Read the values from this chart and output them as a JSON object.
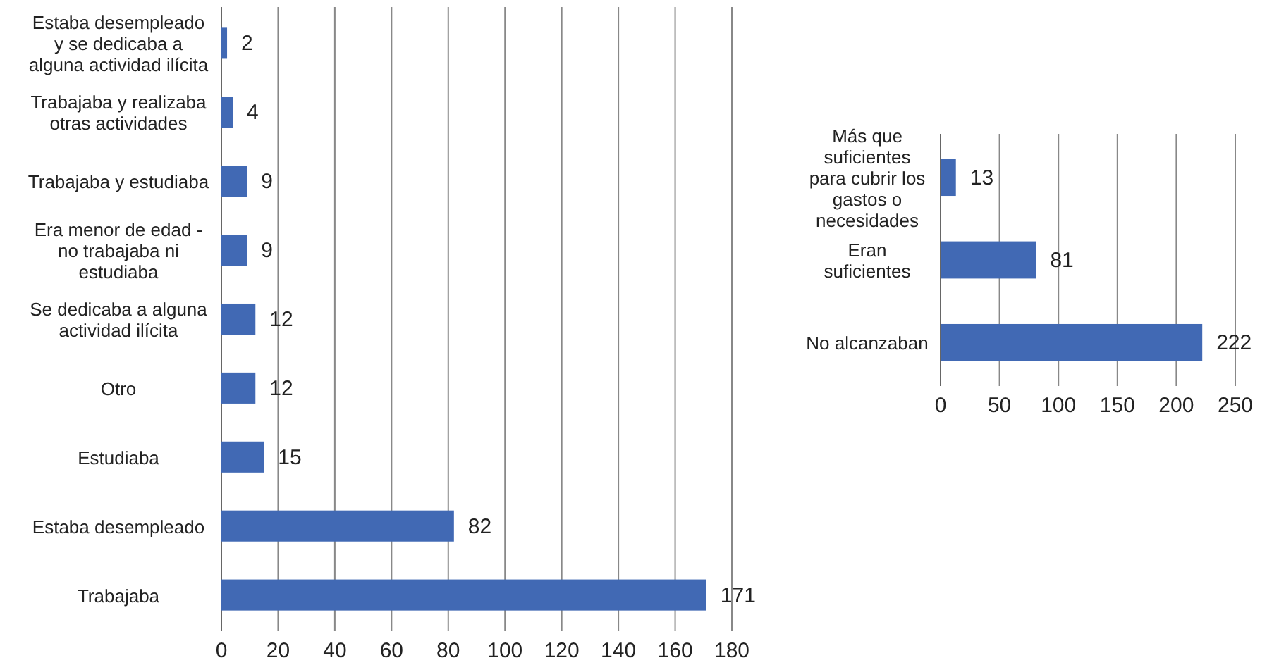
{
  "chart_data": [
    {
      "type": "bar",
      "orientation": "horizontal",
      "categories": [
        "Estaba desempleado y se dedicaba a alguna actividad ilícita",
        "Trabajaba y realizaba otras actividades",
        "Trabajaba y estudiaba",
        "Era menor de edad - no trabajaba ni estudiaba",
        "Se dedicaba a alguna actividad ilícita",
        "Otro",
        "Estudiaba",
        "Estaba desempleado",
        "Trabajaba"
      ],
      "values": [
        2,
        4,
        9,
        9,
        12,
        12,
        15,
        82,
        171
      ],
      "color": "#4169b4",
      "xlim": [
        0,
        180
      ],
      "xticks": [
        0,
        20,
        40,
        60,
        80,
        100,
        120,
        140,
        160,
        180
      ],
      "grid": "x",
      "data_labels": true
    },
    {
      "type": "bar",
      "orientation": "horizontal",
      "categories": [
        "Más que suficientes para cubrir los gastos o necesidades",
        "Eran suficientes",
        "No alcanzaban"
      ],
      "values": [
        13,
        81,
        222
      ],
      "color": "#4169b4",
      "xlim": [
        0,
        250
      ],
      "xticks": [
        0,
        50,
        100,
        150,
        200,
        250
      ],
      "grid": "x",
      "data_labels": true
    }
  ]
}
